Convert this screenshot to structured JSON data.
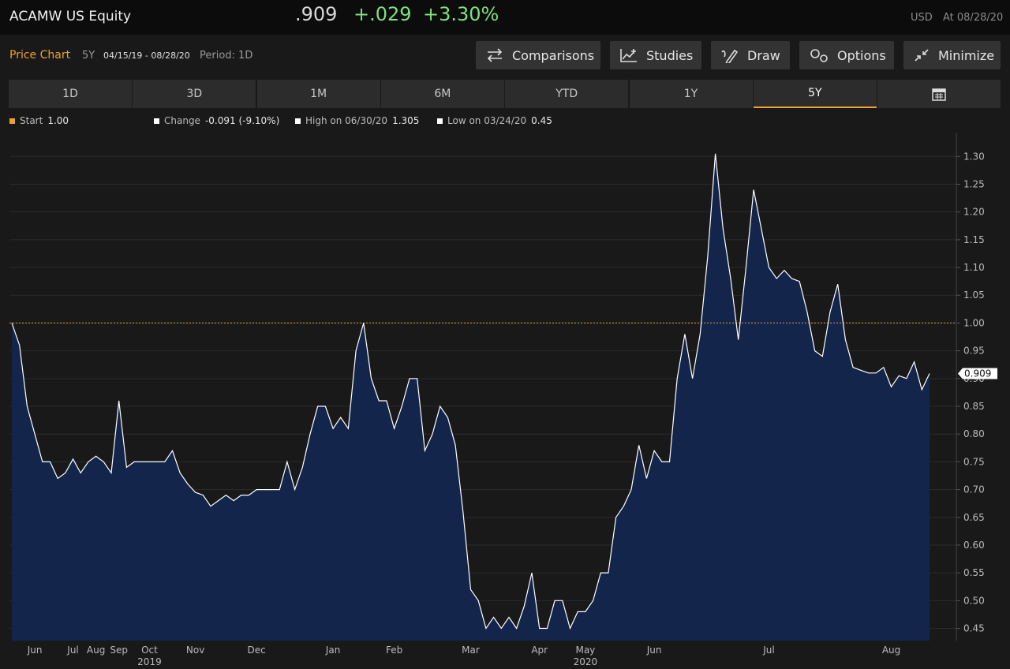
{
  "header": {
    "title": "ACAMW US Equity",
    "price": ".909",
    "change": "+.029",
    "change_pct": "+3.30%",
    "currency": "USD",
    "date": "At 08/28/20"
  },
  "toolbar": {
    "chart_label": "Price Chart",
    "period_short": "5Y",
    "date_range": "04/15/19 - 08/28/20",
    "period": "Period: 1D",
    "buttons": [
      "Comparisons",
      "Studies",
      "Draw",
      "Options",
      "Minimize"
    ]
  },
  "tabs": [
    "1D",
    "3D",
    "1M",
    "6M",
    "YTD",
    "1Y",
    "5Y"
  ],
  "legend": [
    {
      "label": "Start",
      "value": "1.00"
    },
    {
      "label": "Change",
      "value": "-0.091 (-9.10%)"
    },
    {
      "label": "High on 06/30/20",
      "value": "1.305"
    },
    {
      "label": "Low on 03/24/20",
      "value": "0.45"
    }
  ],
  "chart_data": {
    "type": "area",
    "categories": [
      null,
      null,
      null,
      "Jun",
      null,
      null,
      null,
      null,
      "Jul",
      null,
      null,
      "Aug",
      null,
      null,
      "Sep",
      null,
      null,
      null,
      "Oct",
      null,
      null,
      null,
      null,
      null,
      "Nov",
      null,
      null,
      null,
      null,
      null,
      null,
      null,
      "Dec",
      null,
      null,
      null,
      null,
      null,
      null,
      null,
      null,
      null,
      "Jan",
      null,
      null,
      null,
      null,
      null,
      null,
      null,
      "Feb",
      null,
      null,
      null,
      null,
      null,
      null,
      null,
      null,
      null,
      "Mar",
      null,
      null,
      null,
      null,
      null,
      null,
      null,
      null,
      "Apr",
      null,
      null,
      null,
      null,
      null,
      "May",
      null,
      null,
      null,
      null,
      null,
      null,
      null,
      null,
      "Jun",
      null,
      null,
      null,
      null,
      null,
      null,
      null,
      null,
      null,
      null,
      null,
      null,
      null,
      null,
      "Jul",
      null,
      null,
      null,
      null,
      null,
      null,
      null,
      null,
      null,
      null,
      null,
      null,
      null,
      null,
      null,
      "Aug",
      null,
      null,
      null,
      null,
      null
    ],
    "category_years": [
      null,
      null,
      null,
      null,
      null,
      null,
      null,
      null,
      null,
      null,
      null,
      null,
      null,
      null,
      null,
      null,
      null,
      null,
      "2019",
      null,
      null,
      null,
      null,
      null,
      null,
      null,
      null,
      null,
      null,
      null,
      null,
      null,
      null,
      null,
      null,
      null,
      null,
      null,
      null,
      null,
      null,
      null,
      null,
      null,
      null,
      null,
      null,
      null,
      null,
      null,
      null,
      null,
      null,
      null,
      null,
      null,
      null,
      null,
      null,
      null,
      null,
      null,
      null,
      null,
      null,
      null,
      null,
      null,
      null,
      null,
      null,
      null,
      null,
      null,
      null,
      "2020",
      null,
      null,
      null,
      null,
      null,
      null,
      null,
      null,
      null,
      null,
      null,
      null,
      null,
      null,
      null,
      null,
      null,
      null,
      null,
      null,
      null,
      null,
      null,
      null,
      null,
      null,
      null,
      null,
      null,
      null,
      null,
      null,
      null,
      null,
      null,
      null,
      null,
      null,
      null,
      null,
      null,
      null,
      null,
      null,
      null
    ],
    "series": [
      {
        "color": "#ffffff",
        "fill": "#13254a",
        "values": [
          1.0,
          0.96,
          0.85,
          0.8,
          0.75,
          0.75,
          0.72,
          0.73,
          0.755,
          0.73,
          0.75,
          0.76,
          0.75,
          0.73,
          0.86,
          0.74,
          0.75,
          0.75,
          0.75,
          0.75,
          0.75,
          0.77,
          0.73,
          0.71,
          0.695,
          0.69,
          0.67,
          0.68,
          0.69,
          0.68,
          0.69,
          0.69,
          0.7,
          0.7,
          0.7,
          0.7,
          0.75,
          0.7,
          0.74,
          0.8,
          0.85,
          0.85,
          0.81,
          0.83,
          0.81,
          0.95,
          1.0,
          0.9,
          0.86,
          0.86,
          0.81,
          0.85,
          0.9,
          0.9,
          0.77,
          0.8,
          0.85,
          0.83,
          0.78,
          0.66,
          0.52,
          0.5,
          0.45,
          0.47,
          0.45,
          0.47,
          0.45,
          0.49,
          0.55,
          0.45,
          0.45,
          0.5,
          0.5,
          0.45,
          0.48,
          0.48,
          0.5,
          0.55,
          0.55,
          0.65,
          0.67,
          0.7,
          0.78,
          0.72,
          0.77,
          0.75,
          0.75,
          0.9,
          0.98,
          0.9,
          0.98,
          1.12,
          1.305,
          1.17,
          1.08,
          0.97,
          1.1,
          1.24,
          1.17,
          1.1,
          1.08,
          1.095,
          1.08,
          1.075,
          1.02,
          0.95,
          0.94,
          1.02,
          1.07,
          0.97,
          0.92,
          0.915,
          0.91,
          0.91,
          0.92,
          0.885,
          0.905,
          0.9,
          0.93,
          0.88,
          0.909
        ]
      }
    ],
    "reference_line": {
      "value": 1.0,
      "color": "#f0a030"
    },
    "ylim": [
      0.428,
      1.326
    ],
    "yticks": [
      0.45,
      {
        "value": 0.5,
        "label": "0.50"
      },
      0.55,
      {
        "value": 0.6,
        "label": "0.60"
      },
      0.65,
      {
        "value": 0.7,
        "label": "0.70"
      },
      0.75,
      {
        "value": 0.8,
        "label": "0.80"
      },
      0.85,
      {
        "value": 0.9,
        "label": "0.90"
      },
      0.95,
      {
        "value": 1,
        "label": "1.00"
      },
      1.05,
      {
        "value": 1.1,
        "label": "1.10"
      },
      1.15,
      {
        "value": 1.2,
        "label": "1.20"
      },
      1.25,
      {
        "value": 1.3,
        "label": "1.30"
      }
    ],
    "grid": true
  }
}
